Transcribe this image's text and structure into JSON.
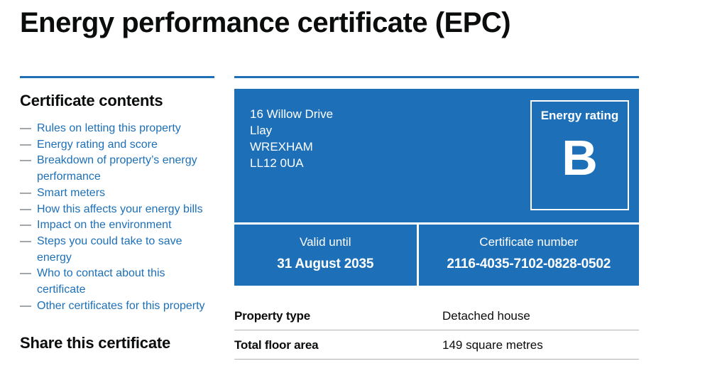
{
  "page": {
    "title": "Energy performance certificate (EPC)"
  },
  "sidebar": {
    "heading": "Certificate contents",
    "bullet": "—",
    "items": [
      "Rules on letting this property",
      "Energy rating and score",
      "Breakdown of property’s energy performance",
      "Smart meters",
      "How this affects your energy bills",
      "Impact on the environment",
      "Steps you could take to save energy",
      "Who to contact about this certificate",
      "Other certificates for this property"
    ],
    "share_heading": "Share this certificate"
  },
  "certificate": {
    "address_lines": [
      "16 Willow Drive",
      "Llay",
      "WREXHAM",
      "LL12 0UA"
    ],
    "energy_rating_label": "Energy rating",
    "energy_rating_value": "B",
    "valid_until_label": "Valid until",
    "valid_until_value": "31 August 2035",
    "certificate_number_label": "Certificate number",
    "certificate_number_value": "2116-4035-7102-0828-0502"
  },
  "property_details": {
    "rows": [
      {
        "label": "Property type",
        "value": "Detached house"
      },
      {
        "label": "Total floor area",
        "value": "149 square metres"
      }
    ]
  },
  "colors": {
    "govuk_blue": "#1d70b8",
    "text_black": "#0b0c0c",
    "link_blue": "#1d70b8",
    "border_gray": "#b1b4b6"
  }
}
